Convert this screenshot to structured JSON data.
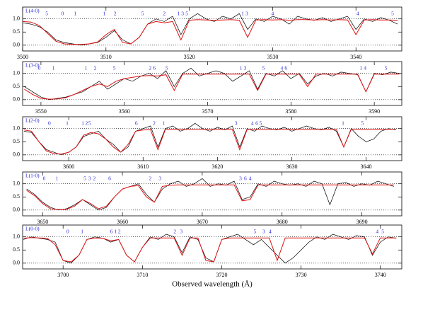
{
  "chart_data": [
    {
      "type": "line",
      "label": "L(4-0)",
      "x": [
        3500,
        3501,
        3502,
        3503,
        3504,
        3505,
        3506,
        3507,
        3508,
        3509,
        3510,
        3511,
        3512,
        3513,
        3514,
        3515,
        3516,
        3517,
        3518,
        3519,
        3520,
        3521,
        3522,
        3523,
        3524,
        3525,
        3526,
        3527,
        3528,
        3529,
        3530,
        3531,
        3532,
        3533,
        3534,
        3535,
        3536,
        3537,
        3538,
        3539,
        3540,
        3541,
        3542,
        3543,
        3544,
        3545
      ],
      "series": [
        {
          "color": "#000000",
          "values": [
            0.85,
            0.8,
            0.7,
            0.5,
            0.2,
            0.1,
            0.05,
            0.0,
            0.05,
            0.1,
            0.3,
            0.55,
            0.2,
            0.05,
            0.3,
            0.8,
            1.0,
            0.9,
            1.1,
            0.4,
            1.0,
            1.2,
            1.0,
            0.9,
            1.1,
            1.0,
            1.2,
            0.6,
            1.0,
            0.9,
            1.1,
            1.0,
            0.8,
            1.1,
            1.0,
            0.95,
            1.05,
            0.9,
            1.0,
            1.1,
            0.6,
            1.0,
            0.9,
            1.05,
            0.95,
            0.8
          ]
        },
        {
          "color": "#e01010",
          "values": [
            0.9,
            0.88,
            0.75,
            0.45,
            0.15,
            0.05,
            0.03,
            0.03,
            0.05,
            0.12,
            0.4,
            0.6,
            0.1,
            0.05,
            0.3,
            0.8,
            0.9,
            0.85,
            0.9,
            0.2,
            0.95,
            0.97,
            0.96,
            0.95,
            0.96,
            0.97,
            0.95,
            0.3,
            0.96,
            0.97,
            0.96,
            0.97,
            0.95,
            0.97,
            0.97,
            0.96,
            0.97,
            0.96,
            0.97,
            0.96,
            0.4,
            0.96,
            0.97,
            0.96,
            0.96,
            0.95
          ]
        }
      ],
      "line_ids": {
        "x": [
          3502.9,
          3504.8,
          3506.3,
          3509.8,
          3511.1,
          3514.4,
          3517,
          3518.7,
          3519.2,
          3519.7,
          3526.4,
          3526.9,
          3530,
          3540.2,
          3544.4
        ],
        "labels": [
          "5",
          "0",
          "1",
          "1",
          "2",
          "5",
          "2",
          "1",
          "3",
          "5",
          "1",
          "3",
          "4",
          "4",
          "5"
        ]
      },
      "xlim": [
        3500,
        3545.5
      ],
      "xticks": [
        3500,
        3510,
        3520,
        3530,
        3540
      ],
      "ylim": [
        -0.22,
        1.45
      ],
      "yticks": [
        {
          "value": 0,
          "label": "0.0"
        },
        {
          "value": 0.5,
          "label": "0.5"
        },
        {
          "value": 1,
          "label": "1.0"
        }
      ],
      "reference_lines": [
        0,
        1
      ]
    },
    {
      "type": "line",
      "label": "L(3-0)",
      "x": [
        3548,
        3549,
        3550,
        3551,
        3552,
        3553,
        3554,
        3555,
        3556,
        3557,
        3558,
        3559,
        3560,
        3561,
        3562,
        3563,
        3564,
        3565,
        3566,
        3567,
        3568,
        3569,
        3570,
        3571,
        3572,
        3573,
        3574,
        3575,
        3576,
        3577,
        3578,
        3579,
        3580,
        3581,
        3582,
        3583,
        3584,
        3585,
        3586,
        3587,
        3588,
        3589,
        3590,
        3591,
        3592,
        3593
      ],
      "series": [
        {
          "color": "#000000",
          "values": [
            0.5,
            0.3,
            0.1,
            0.0,
            0.05,
            0.1,
            0.2,
            0.3,
            0.5,
            0.7,
            0.4,
            0.6,
            0.8,
            0.7,
            0.9,
            1.0,
            0.8,
            1.1,
            0.5,
            1.0,
            1.2,
            0.9,
            1.0,
            1.1,
            1.0,
            0.7,
            0.9,
            1.1,
            0.4,
            1.0,
            0.9,
            1.1,
            0.8,
            1.0,
            0.6,
            0.9,
            1.0,
            0.9,
            1.05,
            1.0,
            0.95,
            0.3,
            1.0,
            0.95,
            1.05,
            1.0
          ]
        },
        {
          "color": "#e01010",
          "values": [
            0.4,
            0.2,
            0.05,
            0.02,
            0.03,
            0.08,
            0.2,
            0.35,
            0.5,
            0.6,
            0.5,
            0.7,
            0.8,
            0.85,
            0.9,
            0.92,
            0.9,
            0.95,
            0.35,
            0.97,
            0.97,
            0.97,
            0.97,
            0.97,
            0.97,
            0.97,
            0.97,
            0.97,
            0.35,
            0.97,
            0.97,
            0.97,
            0.97,
            0.97,
            0.5,
            0.97,
            0.97,
            0.97,
            0.97,
            0.97,
            0.97,
            0.3,
            0.97,
            0.97,
            0.97,
            0.97
          ]
        }
      ],
      "line_ids": {
        "x": [
          3549.8,
          3551.5,
          3555.4,
          3556.5,
          3558.8,
          3563.1,
          3563.6,
          3565.1,
          3574,
          3574.5,
          3576.7,
          3578.9,
          3579.4,
          3588.4,
          3588.9,
          3591.4
        ],
        "labels": [
          "0",
          "1",
          "1",
          "2",
          "5",
          "2",
          "6",
          "5",
          "1",
          "3",
          "5",
          "4",
          "6",
          "1",
          "4",
          "5"
        ]
      },
      "xlim": [
        3547.8,
        3593.3
      ],
      "xticks": [
        3550,
        3560,
        3570,
        3580,
        3590
      ],
      "ylim": [
        -0.22,
        1.45
      ],
      "yticks": [
        {
          "value": 0,
          "label": "0.0"
        },
        {
          "value": 0.5,
          "label": "0.5"
        },
        {
          "value": 1,
          "label": "1.0"
        }
      ],
      "reference_lines": [
        0,
        1
      ]
    },
    {
      "type": "line",
      "label": "L(2-0)",
      "x": [
        3594,
        3595,
        3596,
        3597,
        3598,
        3599,
        3600,
        3601,
        3602,
        3603,
        3604,
        3605,
        3606,
        3607,
        3608,
        3609,
        3610,
        3611,
        3612,
        3613,
        3614,
        3615,
        3616,
        3617,
        3618,
        3619,
        3620,
        3621,
        3622,
        3623,
        3624,
        3625,
        3626,
        3627,
        3628,
        3629,
        3630,
        3631,
        3632,
        3633,
        3634,
        3635,
        3636,
        3637,
        3638,
        3639,
        3640,
        3641,
        3642,
        3643,
        3644
      ],
      "series": [
        {
          "color": "#000000",
          "values": [
            0.9,
            0.85,
            0.5,
            0.2,
            0.1,
            0.0,
            0.1,
            0.3,
            0.7,
            0.8,
            0.9,
            0.6,
            0.4,
            0.1,
            0.3,
            0.9,
            1.0,
            1.1,
            0.3,
            1.0,
            1.1,
            0.9,
            1.0,
            1.2,
            1.0,
            0.9,
            1.05,
            0.95,
            1.1,
            0.3,
            1.0,
            0.9,
            1.1,
            1.0,
            0.95,
            1.05,
            0.9,
            1.0,
            1.1,
            1.0,
            0.95,
            1.05,
            0.9,
            0.3,
            1.0,
            0.7,
            0.5,
            0.6,
            0.9,
            1.0,
            0.95
          ]
        },
        {
          "color": "#e01010",
          "values": [
            0.95,
            0.9,
            0.5,
            0.15,
            0.05,
            0.03,
            0.1,
            0.3,
            0.75,
            0.85,
            0.8,
            0.6,
            0.3,
            0.1,
            0.4,
            0.9,
            0.95,
            0.96,
            0.2,
            0.97,
            0.97,
            0.97,
            0.97,
            0.97,
            0.97,
            0.97,
            0.97,
            0.97,
            0.97,
            0.2,
            0.97,
            0.97,
            0.97,
            0.97,
            0.97,
            0.97,
            0.97,
            0.97,
            0.97,
            0.97,
            0.97,
            0.97,
            0.97,
            0.3,
            0.97,
            0.97,
            0.97,
            0.97,
            0.97,
            0.97,
            0.97
          ]
        }
      ],
      "line_ids": {
        "x": [
          3597.4,
          3599.8,
          3601.9,
          3602.4,
          3602.8,
          3609.1,
          3611.5,
          3612.8,
          3622.5,
          3624.7,
          3625.3,
          3625.8,
          3636.9,
          3639.5
        ],
        "labels": [
          "0",
          "1",
          "1",
          "2",
          "5",
          "6",
          "2",
          "1",
          "3",
          "4",
          "6",
          "5",
          "1",
          "5"
        ]
      },
      "xlim": [
        3593.8,
        3644.8
      ],
      "xticks": [
        3600,
        3610,
        3620,
        3630,
        3640
      ],
      "ylim": [
        -0.22,
        1.45
      ],
      "yticks": [
        {
          "value": 0,
          "label": "0.0"
        },
        {
          "value": 0.5,
          "label": "0.5"
        },
        {
          "value": 1,
          "label": "1.0"
        }
      ],
      "reference_lines": [
        0,
        1
      ]
    },
    {
      "type": "line",
      "label": "L(1-0)",
      "x": [
        3648,
        3649,
        3650,
        3651,
        3652,
        3653,
        3654,
        3655,
        3656,
        3657,
        3658,
        3659,
        3660,
        3661,
        3662,
        3663,
        3664,
        3665,
        3666,
        3667,
        3668,
        3669,
        3670,
        3671,
        3672,
        3673,
        3674,
        3675,
        3676,
        3677,
        3678,
        3679,
        3680,
        3681,
        3682,
        3683,
        3684,
        3685,
        3686,
        3687,
        3688,
        3689,
        3690,
        3691,
        3692,
        3693,
        3694
      ],
      "series": [
        {
          "color": "#000000",
          "values": [
            0.8,
            0.6,
            0.3,
            0.1,
            0.0,
            0.05,
            0.2,
            0.4,
            0.2,
            0.0,
            0.1,
            0.5,
            0.8,
            0.9,
            1.0,
            0.6,
            0.3,
            0.8,
            1.0,
            1.1,
            0.9,
            1.0,
            1.2,
            0.9,
            1.0,
            0.95,
            1.1,
            0.4,
            0.5,
            1.0,
            0.9,
            1.1,
            1.0,
            0.95,
            1.0,
            0.9,
            1.1,
            1.0,
            0.2,
            1.0,
            1.05,
            0.9,
            1.0,
            0.95,
            1.1,
            1.0,
            0.9
          ]
        },
        {
          "color": "#e01010",
          "values": [
            0.75,
            0.55,
            0.25,
            0.05,
            0.02,
            0.03,
            0.15,
            0.4,
            0.25,
            0.05,
            0.15,
            0.5,
            0.8,
            0.9,
            0.93,
            0.5,
            0.3,
            0.9,
            0.95,
            0.96,
            0.96,
            0.96,
            0.96,
            0.96,
            0.96,
            0.96,
            0.96,
            0.35,
            0.4,
            0.96,
            0.96,
            0.96,
            0.96,
            0.96,
            0.96,
            0.96,
            0.96,
            0.96,
            0.96,
            0.96,
            0.96,
            0.96,
            0.96,
            0.96,
            0.96,
            0.96,
            0.96
          ]
        }
      ],
      "line_ids": {
        "x": [
          3650.2,
          3651.8,
          3655.3,
          3655.9,
          3656.5,
          3658.4,
          3663.5,
          3664.7,
          3674.8,
          3675.4,
          3676
        ],
        "labels": [
          "0",
          "1",
          "5",
          "3",
          "2",
          "6",
          "2",
          "3",
          "3",
          "6",
          "4"
        ]
      },
      "xlim": [
        3647.5,
        3695
      ],
      "xticks": [
        3650,
        3660,
        3670,
        3680,
        3690
      ],
      "ylim": [
        -0.22,
        1.45
      ],
      "yticks": [
        {
          "value": 0,
          "label": "0.0"
        },
        {
          "value": 0.5,
          "label": "0.5"
        },
        {
          "value": 1,
          "label": "1.0"
        }
      ],
      "reference_lines": [
        0,
        1
      ]
    },
    {
      "type": "line",
      "label": "L(0-0)",
      "x": [
        3695,
        3696,
        3697,
        3698,
        3699,
        3700,
        3701,
        3702,
        3703,
        3704,
        3705,
        3706,
        3707,
        3708,
        3709,
        3710,
        3711,
        3712,
        3713,
        3714,
        3715,
        3716,
        3717,
        3718,
        3719,
        3720,
        3721,
        3722,
        3723,
        3724,
        3725,
        3726,
        3727,
        3728,
        3729,
        3730,
        3731,
        3732,
        3733,
        3734,
        3735,
        3736,
        3737,
        3738,
        3739,
        3740,
        3741,
        3742
      ],
      "series": [
        {
          "color": "#000000",
          "values": [
            0.9,
            1.0,
            0.95,
            0.9,
            0.8,
            0.1,
            0.0,
            0.3,
            0.9,
            1.0,
            0.95,
            0.8,
            0.9,
            0.3,
            0.05,
            0.6,
            1.0,
            0.9,
            1.1,
            1.0,
            0.4,
            1.0,
            0.9,
            0.2,
            0.05,
            0.9,
            1.0,
            1.1,
            0.9,
            0.7,
            0.9,
            0.6,
            0.3,
            0.0,
            0.2,
            0.5,
            0.8,
            1.0,
            0.9,
            1.1,
            1.0,
            0.9,
            1.05,
            1.0,
            0.3,
            0.8,
            1.0,
            0.95
          ]
        },
        {
          "color": "#e01010",
          "values": [
            0.95,
            0.97,
            0.96,
            0.95,
            0.7,
            0.1,
            0.05,
            0.3,
            0.9,
            0.96,
            0.95,
            0.85,
            0.9,
            0.3,
            0.05,
            0.6,
            0.96,
            0.96,
            0.96,
            0.96,
            0.3,
            0.96,
            0.96,
            0.1,
            0.05,
            0.9,
            0.96,
            0.96,
            0.96,
            0.96,
            0.96,
            0.96,
            0.1,
            0.96,
            0.96,
            0.96,
            0.96,
            0.96,
            0.96,
            0.96,
            0.96,
            0.96,
            0.96,
            0.96,
            0.35,
            0.96,
            0.96,
            0.96
          ]
        }
      ],
      "line_ids": {
        "x": [
          3700.6,
          3702.4,
          3706.1,
          3706.6,
          3707.1,
          3714.1,
          3714.9,
          3724.2,
          3725.3,
          3726.1,
          3739.6,
          3740.3
        ],
        "labels": [
          "0",
          "1",
          "6",
          "1",
          "2",
          "2",
          "3",
          "5",
          "3",
          "4",
          "4",
          "5"
        ]
      },
      "xlim": [
        3694.9,
        3742.7
      ],
      "xticks": [
        3700,
        3710,
        3720,
        3730,
        3740
      ],
      "ylim": [
        -0.22,
        1.45
      ],
      "yticks": [
        {
          "value": 0,
          "label": "0.0"
        },
        {
          "value": 0.5,
          "label": "0.5"
        },
        {
          "value": 1,
          "label": "1.0"
        }
      ],
      "reference_lines": [
        0,
        1
      ],
      "xlabel": "Observed wavelength (Å)"
    }
  ]
}
